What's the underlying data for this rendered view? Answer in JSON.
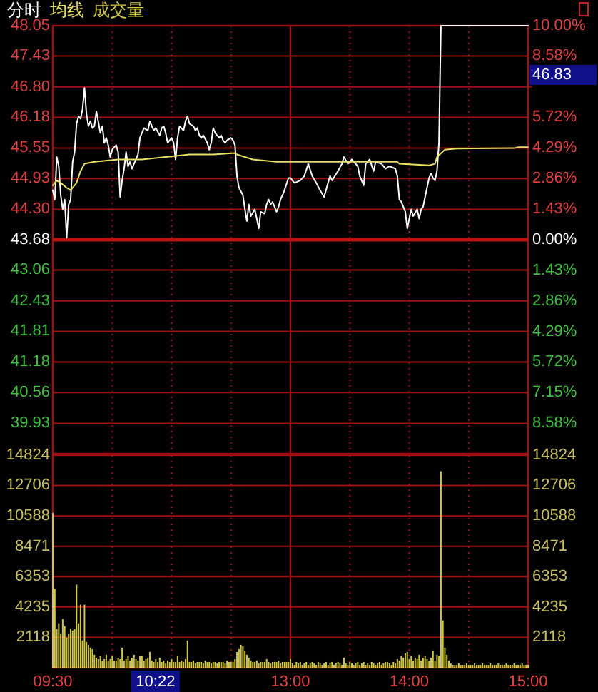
{
  "chart_data": [
    {
      "type": "line",
      "ylim": [
        39.31,
        48.05
      ],
      "y2lim": [
        -10,
        10
      ],
      "categories": [
        "09:30",
        null,
        null,
        null,
        null,
        null,
        null,
        null,
        null,
        null,
        null,
        null,
        null,
        null,
        null,
        null,
        null,
        null,
        null,
        null,
        null,
        null,
        null,
        null,
        null,
        null,
        null,
        null,
        null,
        null,
        null,
        null,
        null,
        null,
        null,
        null,
        null,
        null,
        null,
        null,
        null,
        null,
        null,
        null,
        null,
        null,
        null,
        null,
        null,
        null,
        null,
        null,
        null,
        null,
        null,
        null,
        null,
        null,
        null,
        null,
        null,
        null,
        null,
        null,
        null,
        null,
        null,
        null,
        null,
        null,
        null,
        null,
        null,
        null,
        null,
        null,
        null,
        null,
        null,
        null,
        null,
        null,
        null,
        null,
        null,
        null,
        null,
        null,
        null,
        null,
        null,
        null,
        null,
        null,
        null,
        null,
        null,
        null,
        null,
        null,
        null,
        null,
        null,
        null,
        null,
        null,
        null,
        null,
        null,
        null,
        null,
        null,
        null,
        null,
        null,
        null,
        null,
        null,
        null,
        null,
        "13:00",
        null,
        null,
        null,
        null,
        null,
        null,
        null,
        null,
        null,
        null,
        null,
        null,
        null,
        null,
        null,
        null,
        null,
        null,
        null,
        null,
        null,
        null,
        null,
        null,
        null,
        null,
        null,
        null,
        null,
        null,
        null,
        null,
        null,
        null,
        null,
        null,
        null,
        null,
        null,
        null,
        null,
        null,
        null,
        null,
        null,
        null,
        null,
        null,
        null,
        null,
        null,
        null,
        null,
        null,
        null,
        null,
        null,
        null,
        null,
        "14:00",
        null,
        null,
        null,
        null,
        null,
        null,
        null,
        null,
        null,
        null,
        null,
        null,
        null,
        null,
        null,
        null,
        null,
        null,
        null,
        null,
        null,
        null,
        null,
        null,
        null,
        null,
        null,
        null,
        null,
        null,
        null,
        null,
        null,
        null,
        null,
        null,
        null,
        null,
        null,
        null,
        null,
        null,
        null,
        null,
        null,
        null,
        null,
        null,
        null,
        null,
        null,
        null,
        null,
        null,
        null,
        null,
        null,
        null,
        null,
        "15:00"
      ],
      "yticks": [
        48.05,
        47.43,
        {
          "value": 46.8,
          "label": "46.80"
        },
        46.18,
        45.55,
        44.93,
        {
          "value": 44.3,
          "label": "44.30"
        },
        43.68,
        43.06,
        42.43,
        41.81,
        41.18,
        40.56,
        39.93
      ],
      "y2ticks": [
        {
          "value": 10,
          "label": "10.00%"
        },
        {
          "value": 8.58,
          "label": "8.58%"
        },
        {
          "value": 7.15,
          "label": null
        },
        {
          "value": 5.72,
          "label": "5.72%"
        },
        {
          "value": 4.29,
          "label": "4.29%"
        },
        {
          "value": 2.86,
          "label": "2.86%"
        },
        {
          "value": 1.43,
          "label": "1.43%"
        },
        {
          "value": 0,
          "label": "0.00%"
        },
        {
          "value": -1.43,
          "label": "1.43%"
        },
        {
          "value": -2.86,
          "label": "2.86%"
        },
        {
          "value": -4.29,
          "label": "4.29%"
        },
        {
          "value": -5.72,
          "label": "5.72%"
        },
        {
          "value": -7.15,
          "label": "7.15%"
        },
        {
          "value": -8.58,
          "label": "8.58%"
        }
      ],
      "tick_labels": "y",
      "grid": true,
      "legend": "top left",
      "ref_lines": [
        {
          "axis": "y",
          "value": 43.68
        },
        {
          "axis": "x",
          "value": "13:00"
        }
      ],
      "annotations": [
        "46.83"
      ],
      "series": [
        {
          "name": "分时",
          "color": "#ffffff",
          "values": [
            44.69,
            44.5,
            45.37,
            45.18,
            44.59,
            44.3,
            44.5,
            43.72,
            44.4,
            44.5,
            45.27,
            45.47,
            46.05,
            46.2,
            46.15,
            46.34,
            46.78,
            46.25,
            46.0,
            46.1,
            45.96,
            46.0,
            46.3,
            null,
            45.86,
            46.0,
            45.66,
            45.76,
            45.61,
            45.37,
            45.52,
            45.57,
            45.61,
            45.47,
            44.55,
            44.89,
            45.13,
            45.47,
            45.18,
            45.27,
            45.13,
            45.23,
            null,
            45.42,
            45.76,
            45.86,
            45.96,
            null,
            45.91,
            46.1,
            46.0,
            45.91,
            45.96,
            null,
            45.81,
            45.96,
            46.0,
            45.86,
            45.66,
            null,
            45.76,
            45.66,
            45.32,
            45.76,
            46.0,
            null,
            45.91,
            46.1,
            46.2,
            46.05,
            null,
            46.0,
            45.91,
            45.96,
            45.81,
            45.76,
            45.81,
            null,
            45.66,
            45.52,
            45.66,
            45.96,
            45.86,
            null,
            45.76,
            45.81,
            45.71,
            45.66,
            45.71,
            null,
            45.76,
            45.71,
            45.61,
            44.98,
            44.74,
            null,
            44.59,
            44.3,
            44.06,
            44.4,
            44.16,
            null,
            44.3,
            44.11,
            43.91,
            44.25,
            null,
            44.21,
            44.4,
            44.5,
            44.4,
            44.45,
            null,
            44.25,
            44.35,
            44.5,
            44.59,
            44.69,
            null,
            44.94,
            44.94,
            null,
            44.84,
            null,
            null,
            44.89,
            null,
            44.98,
            null,
            45.23,
            null,
            44.98,
            null,
            44.84,
            null,
            44.69,
            null,
            44.55,
            null,
            44.84,
            44.98,
            44.89,
            null,
            null,
            45.08,
            null,
            45.23,
            45.37,
            null,
            45.23,
            null,
            45.32,
            null,
            null,
            45.18,
            44.98,
            null,
            44.79,
            45.23,
            null,
            45.32,
            null,
            45.08,
            45.27,
            null,
            null,
            45.23,
            null,
            45.13,
            null,
            45.18,
            null,
            null,
            45.13,
            44.98,
            44.5,
            44.45,
            null,
            44.25,
            43.91,
            44.11,
            44.3,
            44.16,
            null,
            44.3,
            44.11,
            44.3,
            44.35,
            44.55,
            null,
            44.94,
            45.03,
            44.94,
            44.89,
            45.08,
            45.66,
            48.05,
            48.05,
            48.05,
            48.05,
            48.05,
            48.05,
            48.05,
            48.05,
            48.05,
            48.05,
            48.05,
            48.05,
            48.05,
            48.05,
            48.05,
            48.05,
            48.05,
            48.05,
            48.05,
            48.05,
            48.05,
            48.05,
            48.05,
            48.05,
            48.05,
            48.05,
            48.05,
            48.05,
            48.05,
            48.05,
            48.05,
            48.05,
            48.05,
            48.05,
            48.05,
            48.05,
            48.05,
            48.05,
            48.05,
            48.05,
            48.05,
            48.05,
            48.05,
            48.05,
            48.05
          ]
        },
        {
          "name": "均线",
          "color": "#e8e060",
          "values": [
            44.79,
            null,
            44.89,
            null,
            44.84,
            null,
            null,
            44.74,
            null,
            44.69,
            null,
            null,
            44.84,
            null,
            45.08,
            null,
            45.23,
            null,
            null,
            null,
            null,
            45.27,
            null,
            null,
            null,
            null,
            null,
            null,
            null,
            null,
            null,
            null,
            null,
            45.32,
            null,
            null,
            null,
            null,
            null,
            null,
            null,
            null,
            null,
            null,
            null,
            45.32,
            null,
            null,
            null,
            null,
            null,
            null,
            null,
            null,
            null,
            null,
            null,
            45.37,
            null,
            null,
            null,
            null,
            null,
            null,
            null,
            null,
            null,
            null,
            null,
            45.42,
            null,
            null,
            null,
            null,
            null,
            null,
            null,
            null,
            null,
            null,
            null,
            45.42,
            null,
            null,
            null,
            null,
            null,
            null,
            null,
            null,
            null,
            null,
            45.45,
            45.42,
            null,
            null,
            null,
            null,
            null,
            null,
            null,
            45.32,
            null,
            null,
            null,
            null,
            null,
            null,
            null,
            null,
            null,
            null,
            null,
            45.27,
            null,
            null,
            null,
            null,
            null,
            null,
            45.27,
            null,
            null,
            null,
            null,
            null,
            null,
            null,
            null,
            null,
            null,
            null,
            null,
            null,
            null,
            null,
            null,
            null,
            null,
            null,
            null,
            45.27,
            null,
            null,
            null,
            null,
            null,
            null,
            null,
            null,
            null,
            null,
            null,
            null,
            null,
            null,
            null,
            null,
            null,
            null,
            null,
            null,
            null,
            null,
            null,
            null,
            null,
            null,
            null,
            null,
            null,
            null,
            null,
            null,
            45.27,
            45.23,
            null,
            null,
            null,
            null,
            null,
            null,
            null,
            null,
            null,
            null,
            null,
            null,
            null,
            null,
            45.2,
            null,
            null,
            45.23,
            45.37,
            null,
            null,
            null,
            45.52,
            null,
            null,
            null,
            null,
            null,
            45.54,
            null,
            null,
            null,
            null,
            null,
            null,
            null,
            null,
            null,
            null,
            null,
            null,
            null,
            null,
            null,
            null,
            null,
            null,
            null,
            null,
            null,
            null,
            null,
            null,
            null,
            null,
            null,
            null,
            45.55,
            null,
            45.57,
            null,
            null,
            null,
            null,
            45.57
          ]
        }
      ]
    },
    {
      "type": "bar",
      "ylim": [
        0,
        14824
      ],
      "y2lim": [
        0,
        14824
      ],
      "categories": [
        "09:30",
        null,
        null,
        null,
        null,
        null,
        null,
        null,
        null,
        null,
        null,
        null,
        null,
        null,
        null,
        null,
        null,
        null,
        null,
        null,
        null,
        null,
        null,
        null,
        null,
        null,
        null,
        null,
        null,
        null,
        null,
        null,
        null,
        null,
        null,
        null,
        null,
        null,
        null,
        null,
        null,
        null,
        null,
        null,
        null,
        null,
        null,
        null,
        null,
        null,
        null,
        null,
        null,
        null,
        null,
        null,
        null,
        null,
        null,
        null,
        null,
        null,
        null,
        null,
        null,
        null,
        null,
        null,
        null,
        null,
        null,
        null,
        null,
        null,
        null,
        null,
        null,
        null,
        null,
        null,
        null,
        null,
        null,
        null,
        null,
        null,
        null,
        null,
        null,
        null,
        null,
        null,
        null,
        null,
        null,
        null,
        null,
        null,
        null,
        null,
        null,
        null,
        null,
        null,
        null,
        null,
        null,
        null,
        null,
        null,
        null,
        null,
        null,
        null,
        null,
        null,
        null,
        null,
        null,
        null,
        "13:00",
        null,
        null,
        null,
        null,
        null,
        null,
        null,
        null,
        null,
        null,
        null,
        null,
        null,
        null,
        null,
        null,
        null,
        null,
        null,
        null,
        null,
        null,
        null,
        null,
        null,
        null,
        null,
        null,
        null,
        null,
        null,
        null,
        null,
        null,
        null,
        null,
        null,
        null,
        null,
        null,
        null,
        null,
        null,
        null,
        null,
        null,
        null,
        null,
        null,
        null,
        null,
        null,
        null,
        null,
        null,
        null,
        null,
        null,
        null,
        "14:00",
        null,
        null,
        null,
        null,
        null,
        null,
        null,
        null,
        null,
        null,
        null,
        null,
        null,
        null,
        null,
        null,
        null,
        null,
        null,
        null,
        null,
        null,
        null,
        null,
        null,
        null,
        null,
        null,
        null,
        null,
        null,
        null,
        null,
        null,
        null,
        null,
        null,
        null,
        null,
        null,
        null,
        null,
        null,
        null,
        null,
        null,
        null,
        null,
        null,
        null,
        null,
        null,
        null,
        null,
        null,
        null,
        null,
        null,
        null,
        "15:00"
      ],
      "yticks": [
        14824,
        12706,
        10588,
        8471,
        6353,
        4235,
        2118
      ],
      "y2ticks": [
        14824,
        12706,
        10588,
        8471,
        6353,
        4235,
        2118
      ],
      "grid": true,
      "legend": "top left",
      "ref_lines": [
        {
          "axis": "x",
          "value": "13:00"
        }
      ],
      "annotations": [
        "10:22"
      ],
      "series": [
        {
          "name": "成交量",
          "color": "#d0c840",
          "values": [
            10800,
            5500,
            2700,
            3100,
            2400,
            3400,
            2900,
            2100,
            2400,
            2700,
            2600,
            2700,
            5800,
            3100,
            4400,
            1900,
            4400,
            1800,
            1600,
            1400,
            1300,
            900,
            700,
            600,
            800,
            500,
            600,
            900,
            500,
            600,
            800,
            500,
            500,
            700,
            600,
            1400,
            500,
            600,
            800,
            500,
            700,
            900,
            600,
            500,
            800,
            800,
            500,
            600,
            700,
            1100,
            500,
            400,
            600,
            400,
            700,
            400,
            500,
            300,
            500,
            400,
            600,
            400,
            400,
            800,
            400,
            500,
            400,
            600,
            1900,
            400,
            400,
            500,
            300,
            400,
            400,
            400,
            300,
            500,
            400,
            400,
            300,
            400,
            400,
            300,
            400,
            400,
            400,
            300,
            500,
            400,
            400,
            400,
            600,
            1100,
            1300,
            1600,
            1500,
            1200,
            900,
            700,
            500,
            400,
            400,
            500,
            300,
            400,
            400,
            400,
            600,
            400,
            300,
            400,
            400,
            400,
            500,
            300,
            400,
            400,
            400,
            400,
            600,
            300,
            200,
            400,
            300,
            400,
            200,
            300,
            400,
            200,
            300,
            400,
            300,
            200,
            400,
            300,
            200,
            300,
            400,
            200,
            300,
            400,
            200,
            300,
            400,
            300,
            200,
            700,
            300,
            200,
            400,
            300,
            200,
            300,
            400,
            200,
            300,
            400,
            200,
            300,
            200,
            400,
            300,
            200,
            300,
            400,
            200,
            300,
            400,
            400,
            300,
            200,
            400,
            300,
            600,
            500,
            800,
            700,
            1000,
            1100,
            600,
            800,
            500,
            700,
            600,
            900,
            500,
            700,
            800,
            600,
            500,
            700,
            1200,
            500,
            900,
            800,
            13700,
            3300,
            1400,
            900,
            500,
            300,
            200,
            200,
            200,
            300,
            200,
            200,
            200,
            300,
            200,
            200,
            200,
            300,
            200,
            200,
            200,
            300,
            200,
            200,
            200,
            300,
            200,
            200,
            200,
            300,
            200,
            200,
            200,
            300,
            200,
            200,
            200,
            300,
            200,
            200,
            200,
            300,
            200,
            200,
            200
          ]
        }
      ]
    }
  ]
}
